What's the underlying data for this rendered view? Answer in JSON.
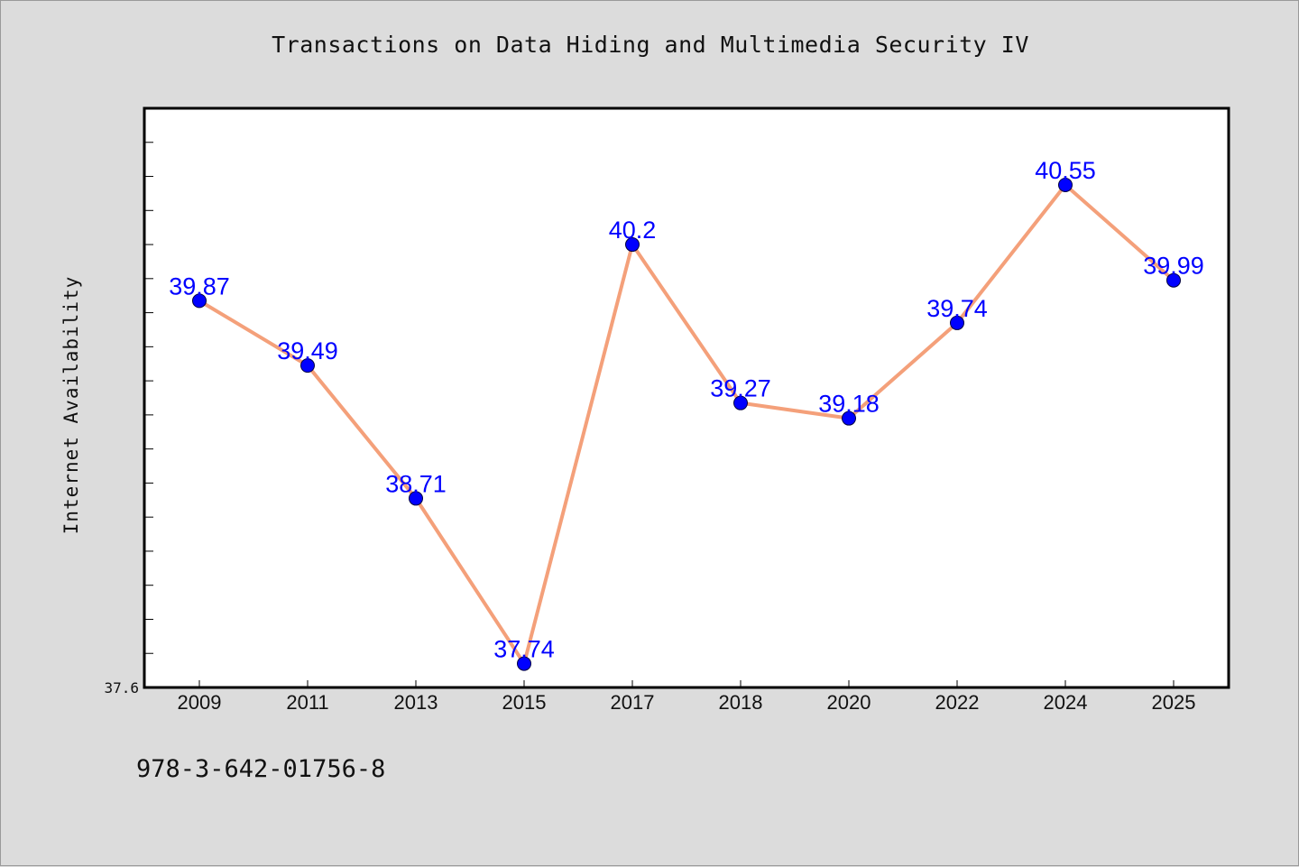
{
  "chart_data": {
    "type": "line",
    "title": "Transactions on Data Hiding and Multimedia Security IV",
    "xlabel": "",
    "ylabel": "Internet Availability",
    "categories": [
      "2009",
      "2011",
      "2013",
      "2015",
      "2017",
      "2018",
      "2020",
      "2022",
      "2024",
      "2025"
    ],
    "values": [
      39.87,
      39.49,
      38.71,
      37.74,
      40.2,
      39.27,
      39.18,
      39.74,
      40.55,
      39.99
    ],
    "data_labels": [
      "39.87",
      "39.49",
      "38.71",
      "37.74",
      "40.2",
      "39.27",
      "39.18",
      "39.74",
      "40.55",
      "39.99"
    ],
    "y_tick_labels": [
      "37.6"
    ],
    "ylim": [
      37.6,
      41.0
    ],
    "grid": false,
    "legend": "none",
    "line_color": "#f4a07a",
    "marker_color": "#0000ff",
    "label_color": "#0000ff",
    "plot_background": "#ffffff",
    "page_background": "#dcdcdc"
  },
  "footer": {
    "isbn": "978-3-642-01756-8"
  }
}
